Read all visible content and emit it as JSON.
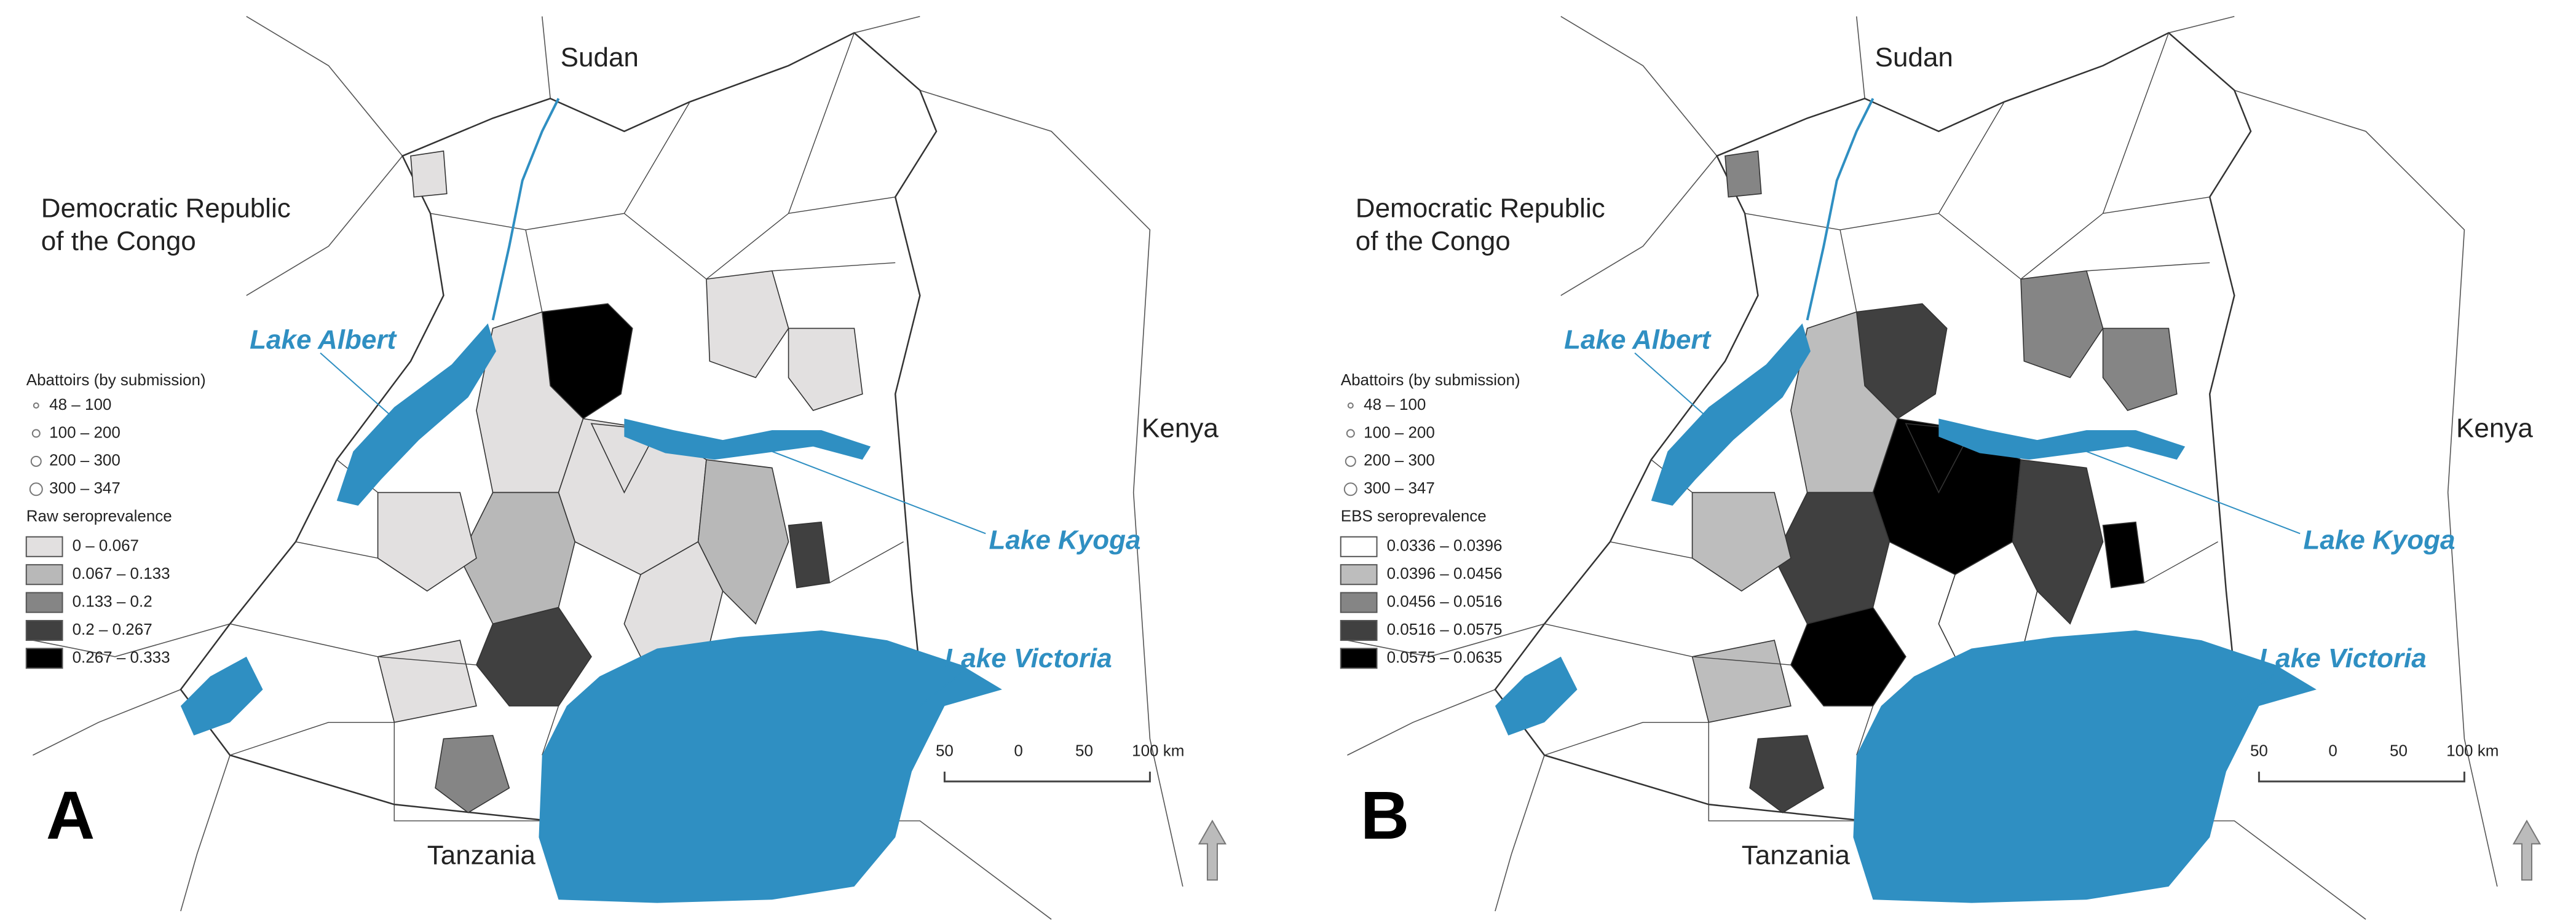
{
  "panels": [
    {
      "label": "A",
      "countries": {
        "sudan": "Sudan",
        "drc": [
          "Democratic Republic",
          "of the Congo"
        ],
        "kenya": "Kenya",
        "tanzania": "Tanzania"
      },
      "lakes": {
        "albert": "Lake Albert",
        "kyoga": "Lake Kyoga",
        "victoria": "Lake Victoria"
      },
      "abattoir_legend": {
        "title": "Abattoirs (by submission)",
        "items": [
          "48 – 100",
          "100 – 200",
          "200 – 300",
          "300 – 347"
        ]
      },
      "prevalence_legend": {
        "title": "Raw seroprevalence",
        "items": [
          {
            "label": "0 – 0.067",
            "color": "#e2e0e0"
          },
          {
            "label": "0.067 – 0.133",
            "color": "#b8b8b8"
          },
          {
            "label": "0.133 – 0.2",
            "color": "#858585"
          },
          {
            "label": "0.2 – 0.267",
            "color": "#404040"
          },
          {
            "label": "0.267 – 0.333",
            "color": "#000000"
          }
        ]
      },
      "scale_bar": [
        "50",
        "0",
        "50",
        "100 km"
      ]
    },
    {
      "label": "B",
      "countries": {
        "sudan": "Sudan",
        "drc": [
          "Democratic Republic",
          "of the Congo"
        ],
        "kenya": "Kenya",
        "tanzania": "Tanzania"
      },
      "lakes": {
        "albert": "Lake Albert",
        "kyoga": "Lake Kyoga",
        "victoria": "Lake Victoria"
      },
      "abattoir_legend": {
        "title": "Abattoirs (by submission)",
        "items": [
          "48 – 100",
          "100 – 200",
          "200 – 300",
          "300 – 347"
        ]
      },
      "prevalence_legend": {
        "title": "EBS seroprevalence",
        "items": [
          {
            "label": "0.0336 – 0.0396",
            "color": "#ffffff"
          },
          {
            "label": "0.0396 – 0.0456",
            "color": "#bdbdbd"
          },
          {
            "label": "0.0456 – 0.0516",
            "color": "#858585"
          },
          {
            "label": "0.0516 – 0.0575",
            "color": "#404040"
          },
          {
            "label": "0.0575 – 0.0635",
            "color": "#000000"
          }
        ]
      },
      "scale_bar": [
        "50",
        "0",
        "50",
        "100 km"
      ]
    }
  ]
}
